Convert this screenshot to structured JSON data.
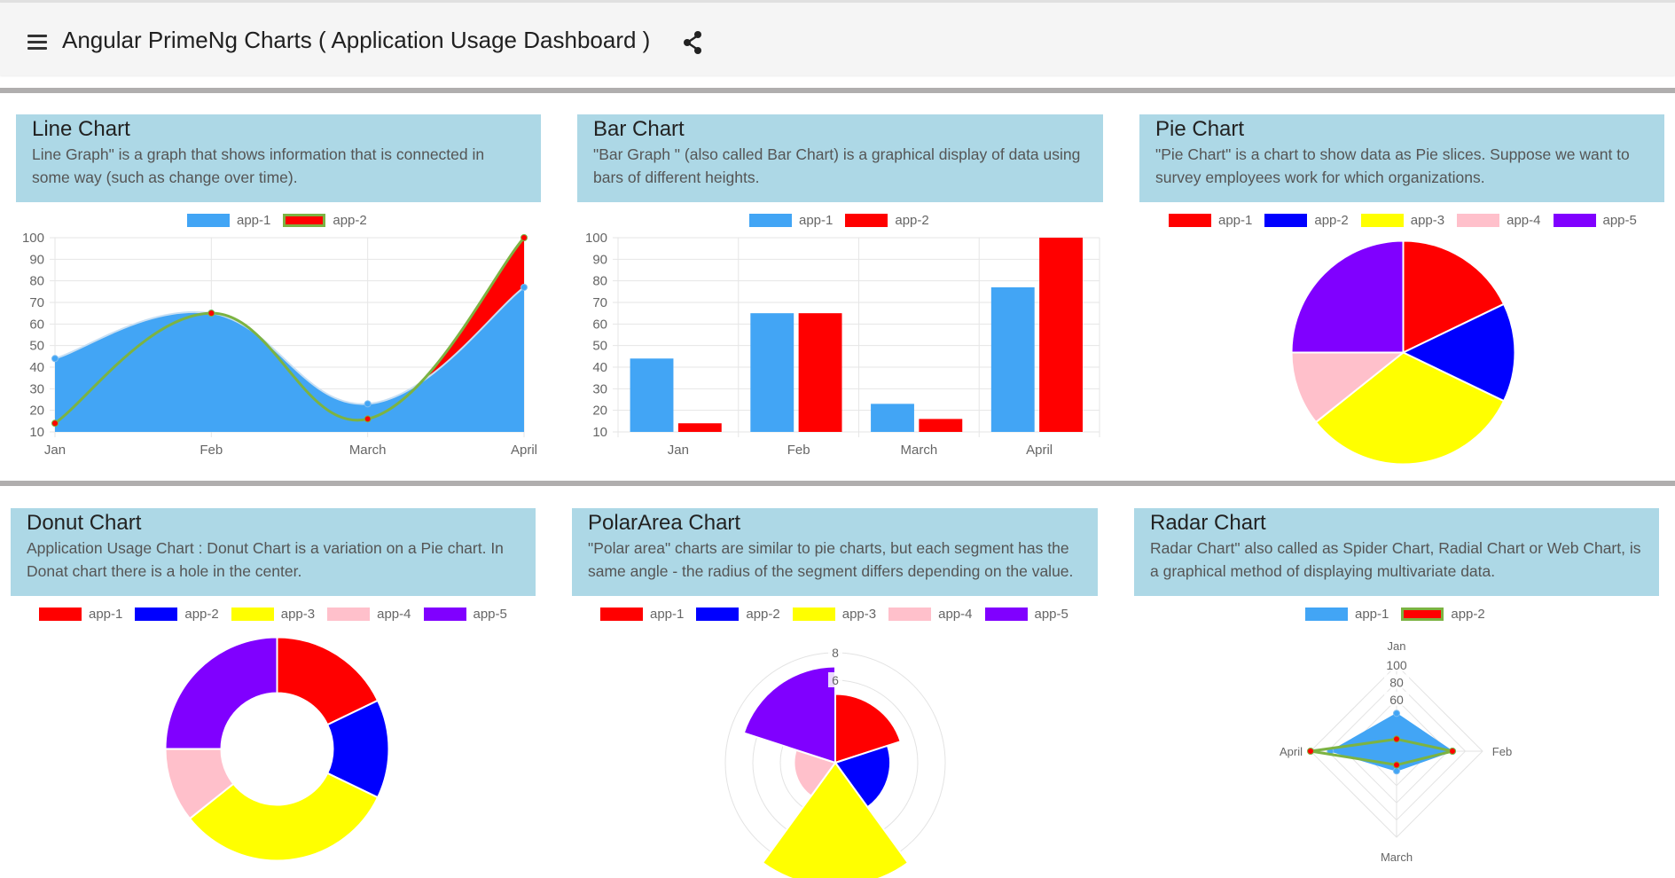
{
  "toolbar": {
    "title": "Angular PrimeNg Charts ( Application Usage Dashboard )",
    "menu_icon": "menu-icon",
    "share_icon": "share-icon"
  },
  "cards": {
    "line": {
      "title": "Line Chart",
      "desc1": "Line Graph\" is a graph that shows information that is connected in",
      "desc2": "some way (such as change over time)."
    },
    "bar": {
      "title": "Bar Chart",
      "desc1": "\"Bar Graph \" (also called Bar Chart) is a graphical display of data using",
      "desc2": "bars of different heights."
    },
    "pie": {
      "title": "Pie Chart",
      "desc1": "\"Pie Chart\" is a chart to show data as Pie slices. Suppose we want to",
      "desc2": "survey employees work for which organizations."
    },
    "donut": {
      "title": "Donut Chart",
      "desc1": "Application Usage Chart : Donut Chart is a variation on a Pie chart. In",
      "desc2": "Donat chart there is a hole in the center."
    },
    "polar": {
      "title": "PolarArea Chart",
      "desc1": "\"Polar area\" charts are similar to pie charts, but each segment has the",
      "desc2": "same angle - the radius of the segment differs depending on the value."
    },
    "radar": {
      "title": "Radar Chart",
      "desc1": "Radar Chart\" also called as Spider Chart, Radial Chart or Web Chart, is",
      "desc2": "a graphical method of displaying multivariate data."
    }
  },
  "colors": {
    "app1_series": "#42a5f5",
    "app2_series": "#ff0000",
    "app2_border": "#7cb342",
    "header_bg": "#add8e6",
    "separator": "#b0aeae"
  },
  "chart_data": [
    {
      "id": "line",
      "type": "line",
      "categories": [
        "Jan",
        "Feb",
        "March",
        "April"
      ],
      "series": [
        {
          "name": "app-1",
          "values": [
            44,
            65,
            23,
            77
          ],
          "color": "#42a5f5"
        },
        {
          "name": "app-2",
          "values": [
            14,
            65,
            16,
            100
          ],
          "color": "#ff0000",
          "border": "#7cb342"
        }
      ],
      "ylim": [
        10,
        100
      ],
      "yticks": [
        "100",
        "90",
        "80",
        "70",
        "60",
        "50",
        "40",
        "30",
        "20",
        "10"
      ],
      "legend": "top",
      "grid": true,
      "fill": true
    },
    {
      "id": "bar",
      "type": "bar",
      "categories": [
        "Jan",
        "Feb",
        "March",
        "April"
      ],
      "series": [
        {
          "name": "app-1",
          "values": [
            44,
            65,
            23,
            77
          ],
          "color": "#42a5f5"
        },
        {
          "name": "app-2",
          "values": [
            14,
            65,
            16,
            100
          ],
          "color": "#ff0000"
        }
      ],
      "ylim": [
        10,
        100
      ],
      "yticks": [
        "100",
        "90",
        "80",
        "70",
        "60",
        "50",
        "40",
        "30",
        "20",
        "10"
      ],
      "legend": "top",
      "grid": true
    },
    {
      "id": "pie",
      "type": "pie",
      "labels": [
        "app-1",
        "app-2",
        "app-3",
        "app-4",
        "app-5"
      ],
      "values": [
        5,
        4,
        9,
        3,
        7
      ],
      "colors": [
        "#ff0000",
        "#0000ff",
        "#ffff00",
        "#ffc0cb",
        "#8000ff"
      ],
      "legend": "top"
    },
    {
      "id": "donut",
      "type": "pie",
      "variant": "doughnut",
      "labels": [
        "app-1",
        "app-2",
        "app-3",
        "app-4",
        "app-5"
      ],
      "values": [
        5,
        4,
        9,
        3,
        7
      ],
      "colors": [
        "#ff0000",
        "#0000ff",
        "#ffff00",
        "#ffc0cb",
        "#8000ff"
      ],
      "legend": "top"
    },
    {
      "id": "polar",
      "type": "polarArea",
      "labels": [
        "app-1",
        "app-2",
        "app-3",
        "app-4",
        "app-5"
      ],
      "values": [
        5,
        4,
        9,
        3,
        7
      ],
      "colors": [
        "#ff0000",
        "#0000ff",
        "#ffff00",
        "#ffc0cb",
        "#8000ff"
      ],
      "r_ticks": [
        "8",
        "6"
      ],
      "r_max": 8,
      "legend": "top"
    },
    {
      "id": "radar",
      "type": "radar",
      "categories": [
        "Jan",
        "Feb",
        "March",
        "April"
      ],
      "series": [
        {
          "name": "app-1",
          "values": [
            44,
            65,
            23,
            77
          ],
          "color": "#42a5f5"
        },
        {
          "name": "app-2",
          "values": [
            14,
            65,
            16,
            100
          ],
          "color": "#ff0000",
          "border": "#7cb342"
        }
      ],
      "r_ticks": [
        "100",
        "80",
        "60"
      ],
      "r_max": 100,
      "legend": "top"
    }
  ]
}
